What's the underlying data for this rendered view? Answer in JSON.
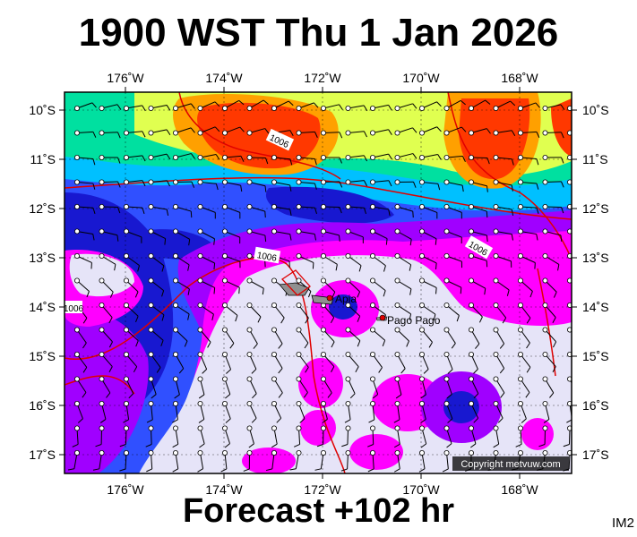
{
  "header": {
    "title": "1900 WST Thu 1 Jan 2026"
  },
  "footer": {
    "forecast": "Forecast +102 hr",
    "image_code": "IM2",
    "copyright": "Copyright metvuw.com"
  },
  "axes": {
    "longitudes": [
      "176˚W",
      "174˚W",
      "172˚W",
      "170˚W",
      "168˚W"
    ],
    "latitudes": [
      "10˚S",
      "11˚S",
      "12˚S",
      "13˚S",
      "14˚S",
      "15˚S",
      "16˚S",
      "17˚S"
    ]
  },
  "places": [
    {
      "name": "Apia"
    },
    {
      "name": "Pago Pago"
    }
  ],
  "isobar_labels": [
    "1006",
    "1006",
    "1006",
    "1006"
  ],
  "colors": {
    "frame": "#000000",
    "isobar": "#e00000",
    "lavender": "#e6e4f8",
    "magenta": "#ff00ff",
    "violet": "#a000ff",
    "blue": "#2020ff",
    "navy": "#1010c0",
    "cyan": "#00c8ff",
    "green": "#00e090",
    "yellow": "#e8ff40",
    "orange": "#ff9000",
    "red": "#ff3000"
  }
}
